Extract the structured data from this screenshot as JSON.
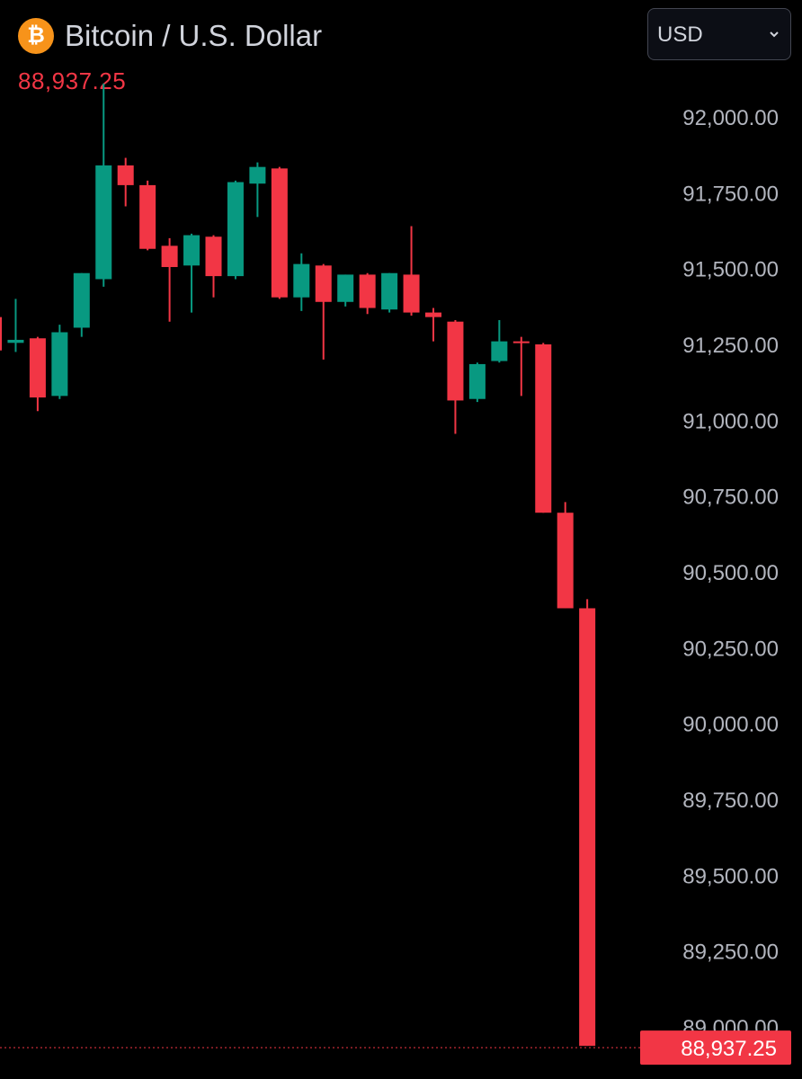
{
  "header": {
    "icon_glyph": "₿",
    "icon_name": "bitcoin-icon",
    "icon_color": "#f7931a",
    "title": "Bitcoin / U.S. Dollar",
    "last_price": "88,937.25",
    "last_price_color": "#f23645"
  },
  "currency_select": {
    "selected": "USD",
    "chevron_icon": "chevron-down-icon"
  },
  "colors": {
    "up": "#089981",
    "down": "#f23645",
    "background": "#000000",
    "axis_text": "#b2b5be"
  },
  "chart_data": {
    "type": "candlestick",
    "y_axis_ticks": [
      "92,000.00",
      "91,750.00",
      "91,500.00",
      "91,250.00",
      "91,000.00",
      "90,750.00",
      "90,500.00",
      "90,250.00",
      "90,000.00",
      "89,750.00",
      "89,500.00",
      "89,250.00",
      "89,000.00"
    ],
    "y_tick_values": [
      92000,
      91750,
      91500,
      91250,
      91000,
      90750,
      90500,
      90250,
      90000,
      89750,
      89500,
      89250,
      89000
    ],
    "ylim": [
      88830,
      92250
    ],
    "last_price_value": 88937.25,
    "last_price_label": "88,937.25",
    "candles": [
      {
        "open": 91340,
        "high": 91400,
        "low": 91210,
        "close": 91230
      },
      {
        "open": 91255,
        "high": 91400,
        "low": 91225,
        "close": 91265
      },
      {
        "open": 91270,
        "high": 91275,
        "low": 91030,
        "close": 91075
      },
      {
        "open": 91080,
        "high": 91315,
        "low": 91070,
        "close": 91290
      },
      {
        "open": 91305,
        "high": 91485,
        "low": 91275,
        "close": 91485
      },
      {
        "open": 91465,
        "high": 92110,
        "low": 91440,
        "close": 91840
      },
      {
        "open": 91840,
        "high": 91865,
        "low": 91705,
        "close": 91775
      },
      {
        "open": 91775,
        "high": 91790,
        "low": 91560,
        "close": 91565
      },
      {
        "open": 91575,
        "high": 91600,
        "low": 91325,
        "close": 91505
      },
      {
        "open": 91510,
        "high": 91615,
        "low": 91355,
        "close": 91610
      },
      {
        "open": 91605,
        "high": 91610,
        "low": 91405,
        "close": 91475
      },
      {
        "open": 91475,
        "high": 91790,
        "low": 91465,
        "close": 91785
      },
      {
        "open": 91780,
        "high": 91850,
        "low": 91670,
        "close": 91835
      },
      {
        "open": 91830,
        "high": 91835,
        "low": 91400,
        "close": 91405
      },
      {
        "open": 91405,
        "high": 91550,
        "low": 91360,
        "close": 91515
      },
      {
        "open": 91510,
        "high": 91515,
        "low": 91200,
        "close": 91390
      },
      {
        "open": 91390,
        "high": 91480,
        "low": 91375,
        "close": 91480
      },
      {
        "open": 91480,
        "high": 91485,
        "low": 91350,
        "close": 91370
      },
      {
        "open": 91365,
        "high": 91485,
        "low": 91355,
        "close": 91485
      },
      {
        "open": 91480,
        "high": 91640,
        "low": 91345,
        "close": 91355
      },
      {
        "open": 91355,
        "high": 91370,
        "low": 91260,
        "close": 91340
      },
      {
        "open": 91325,
        "high": 91330,
        "low": 90955,
        "close": 91065
      },
      {
        "open": 91070,
        "high": 91190,
        "low": 91060,
        "close": 91185
      },
      {
        "open": 91195,
        "high": 91330,
        "low": 91190,
        "close": 91260
      },
      {
        "open": 91260,
        "high": 91275,
        "low": 91080,
        "close": 91255
      },
      {
        "open": 91250,
        "high": 91255,
        "low": 90695,
        "close": 90695
      },
      {
        "open": 90695,
        "high": 90730,
        "low": 90380,
        "close": 90380
      },
      {
        "open": 90380,
        "high": 90410,
        "low": 88937.25,
        "close": 88937.25
      }
    ]
  }
}
